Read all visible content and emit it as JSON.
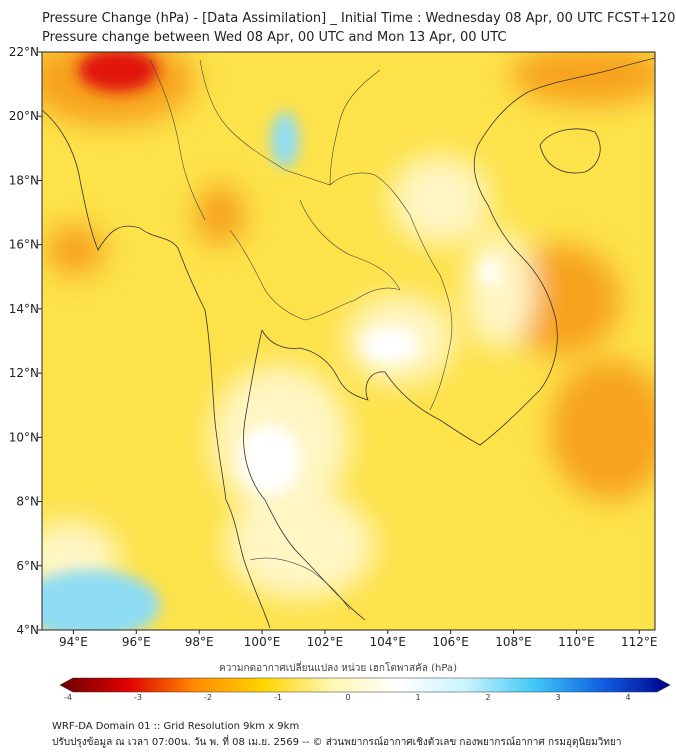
{
  "title": {
    "line1": "Pressure Change (hPa) - [Data Assimilation] _ Initial Time : Wednesday 08 Apr, 00 UTC FCST+120",
    "line2": "Pressure change between Wed 08 Apr, 00 UTC and Mon 13 Apr, 00 UTC"
  },
  "map": {
    "lon_range": [
      93,
      112.5
    ],
    "lat_range": [
      4,
      22
    ],
    "lon_ticks": [
      {
        "value": 94,
        "label": "94°E"
      },
      {
        "value": 96,
        "label": "96°E"
      },
      {
        "value": 98,
        "label": "98°E"
      },
      {
        "value": 100,
        "label": "100°E"
      },
      {
        "value": 102,
        "label": "102°E"
      },
      {
        "value": 104,
        "label": "104°E"
      },
      {
        "value": 106,
        "label": "106°E"
      },
      {
        "value": 108,
        "label": "108°E"
      },
      {
        "value": 110,
        "label": "110°E"
      },
      {
        "value": 112,
        "label": "112°E"
      }
    ],
    "lat_ticks": [
      {
        "value": 22,
        "label": "22°N"
      },
      {
        "value": 20,
        "label": "20°N"
      },
      {
        "value": 18,
        "label": "18°N"
      },
      {
        "value": 16,
        "label": "16°N"
      },
      {
        "value": 14,
        "label": "14°N"
      },
      {
        "value": 12,
        "label": "12°N"
      },
      {
        "value": 10,
        "label": "10°N"
      },
      {
        "value": 8,
        "label": "8°N"
      },
      {
        "value": 6,
        "label": "6°N"
      },
      {
        "value": 4,
        "label": "4°N"
      }
    ],
    "colors": {
      "base": "#fde24a",
      "strong": "#e0140a",
      "orange": "#f7a21c",
      "light": "#fff6c4",
      "near_zero": "#ffffff",
      "rise": "#8fdcf5"
    }
  },
  "colorbar": {
    "label": "ความกดอากาศเปลี่ยนแปลง หน่วย เฮกโตพาสคัล (hPa)",
    "min": -4,
    "max": 4,
    "ticks": [
      "-4",
      "-3",
      "-2",
      "-1",
      "0",
      "1",
      "2",
      "3",
      "4"
    ],
    "colors": [
      "#6b0000",
      "#e00000",
      "#ff8c00",
      "#ffd400",
      "#fff7b0",
      "#ffffff",
      "#c8f3ff",
      "#40c8f5",
      "#1060e0",
      "#00008b"
    ]
  },
  "footer": {
    "line1": "WRF-DA Domain 01 :: Grid Resolution 9km x 9km",
    "line2": "ปรับปรุงข้อมูล ณ เวลา 07:00น. วัน พ. ที่ 08 เม.ย. 2569 -- © ส่วนพยากรณ์อากาศเชิงตัวเลข กองพยากรณ์อากาศ กรมอุตุนิยมวิทยา"
  }
}
